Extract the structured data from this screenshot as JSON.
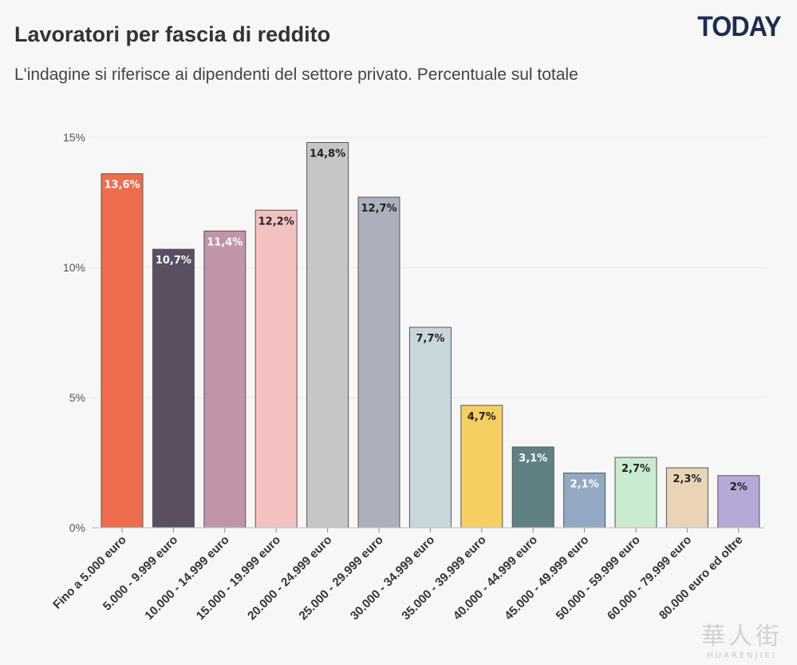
{
  "header": {
    "title": "Lavoratori per fascia di reddito",
    "subtitle": "L'indagine si riferisce ai dipendenti del settore privato. Percentuale sul totale",
    "logo": "TODAY"
  },
  "watermark": {
    "glyphs": "華人街",
    "text": "HUARENJIEI"
  },
  "chart_data": {
    "type": "bar",
    "title": "Lavoratori per fascia di reddito",
    "subtitle": "L'indagine si riferisce ai dipendenti del settore privato. Percentuale sul totale",
    "xlabel": "",
    "ylabel": "",
    "ylim": [
      0,
      15
    ],
    "yticks": [
      0,
      5,
      10,
      15
    ],
    "ytick_labels": [
      "0%",
      "5%",
      "10%",
      "15%"
    ],
    "grid": true,
    "categories": [
      "Fino a 5.000 euro",
      "5.000 - 9.999 euro",
      "10.000 - 14.999 euro",
      "15.000 - 19.999 euro",
      "20.000 - 24.999 euro",
      "25.000 - 29.999 euro",
      "30.000 - 34.999 euro",
      "35.000 - 39.999 euro",
      "40.000 - 44.999 euro",
      "45.000 - 49.999 euro",
      "50.000 - 59.999 euro",
      "60.000 - 79.999 euro",
      "80.000 euro ed oltre"
    ],
    "values": [
      13.6,
      10.7,
      11.4,
      12.2,
      14.8,
      12.7,
      7.7,
      4.7,
      3.1,
      2.1,
      2.7,
      2.3,
      2.0
    ],
    "value_labels": [
      "13,6%",
      "10,7%",
      "11,4%",
      "12,2%",
      "14,8%",
      "12,7%",
      "7,7%",
      "4,7%",
      "3,1%",
      "2,1%",
      "2,7%",
      "2,3%",
      "2%"
    ],
    "colors": [
      "#ed6d4d",
      "#5a4f61",
      "#c294aa",
      "#f3c1c0",
      "#c6c6c6",
      "#acb0bd",
      "#c7d7dc",
      "#f5cf62",
      "#5f8183",
      "#93a9c3",
      "#c9ebcf",
      "#e9d5b5",
      "#b6a9d8"
    ],
    "label_colors": [
      "#ffffff",
      "#ffffff",
      "#ffffff",
      "#222222",
      "#222222",
      "#222222",
      "#222222",
      "#222222",
      "#ffffff",
      "#ffffff",
      "#222222",
      "#222222",
      "#222222"
    ]
  }
}
